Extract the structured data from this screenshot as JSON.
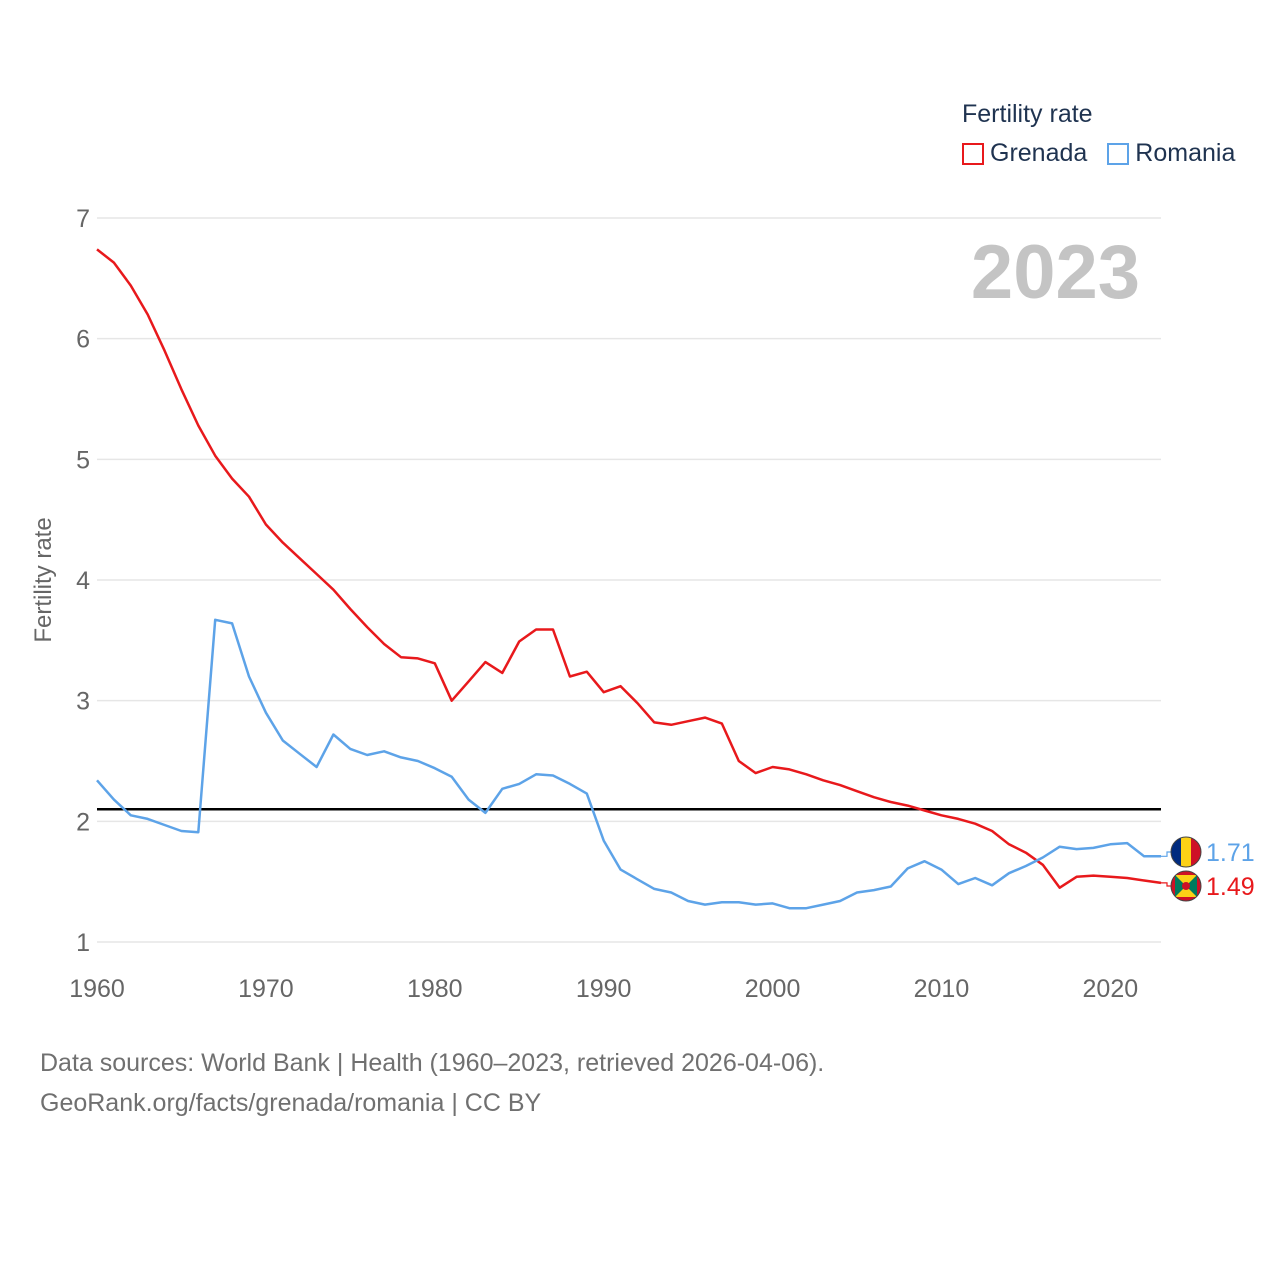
{
  "chart_data": {
    "type": "line",
    "title": "Fertility rate",
    "year_label": "2023",
    "ylabel": "Fertility rate",
    "xlabel": "",
    "xlim": [
      1960,
      2023
    ],
    "ylim": [
      1,
      7
    ],
    "x_ticks": [
      1960,
      1970,
      1980,
      1990,
      2000,
      2010,
      2020
    ],
    "y_ticks": [
      1,
      2,
      3,
      4,
      5,
      6,
      7
    ],
    "reference_line": 2.1,
    "grid": true,
    "x": [
      1960,
      1961,
      1962,
      1963,
      1964,
      1965,
      1966,
      1967,
      1968,
      1969,
      1970,
      1971,
      1972,
      1973,
      1974,
      1975,
      1976,
      1977,
      1978,
      1979,
      1980,
      1981,
      1982,
      1983,
      1984,
      1985,
      1986,
      1987,
      1988,
      1989,
      1990,
      1991,
      1992,
      1993,
      1994,
      1995,
      1996,
      1997,
      1998,
      1999,
      2000,
      2001,
      2002,
      2003,
      2004,
      2005,
      2006,
      2007,
      2008,
      2009,
      2010,
      2011,
      2012,
      2013,
      2014,
      2015,
      2016,
      2017,
      2018,
      2019,
      2020,
      2021,
      2022,
      2023
    ],
    "series": [
      {
        "name": "Grenada",
        "color": "#e8191c",
        "end_label": "1.49",
        "values": [
          6.74,
          6.63,
          6.44,
          6.2,
          5.9,
          5.58,
          5.28,
          5.03,
          4.84,
          4.69,
          4.46,
          4.31,
          4.18,
          4.05,
          3.92,
          3.76,
          3.61,
          3.47,
          3.36,
          3.35,
          3.31,
          3.0,
          3.16,
          3.32,
          3.23,
          3.49,
          3.59,
          3.59,
          3.2,
          3.24,
          3.07,
          3.12,
          2.98,
          2.82,
          2.8,
          2.83,
          2.86,
          2.81,
          2.5,
          2.4,
          2.45,
          2.43,
          2.39,
          2.34,
          2.3,
          2.25,
          2.2,
          2.16,
          2.13,
          2.09,
          2.05,
          2.02,
          1.98,
          1.92,
          1.81,
          1.74,
          1.64,
          1.45,
          1.54,
          1.55,
          1.54,
          1.53,
          1.51,
          1.49
        ]
      },
      {
        "name": "Romania",
        "color": "#5da3e8",
        "end_label": "1.71",
        "values": [
          2.34,
          2.18,
          2.05,
          2.02,
          1.97,
          1.92,
          1.91,
          3.67,
          3.64,
          3.2,
          2.9,
          2.67,
          2.56,
          2.45,
          2.72,
          2.6,
          2.55,
          2.58,
          2.53,
          2.5,
          2.44,
          2.37,
          2.18,
          2.07,
          2.27,
          2.31,
          2.39,
          2.38,
          2.31,
          2.23,
          1.84,
          1.6,
          1.52,
          1.44,
          1.41,
          1.34,
          1.31,
          1.33,
          1.33,
          1.31,
          1.32,
          1.28,
          1.28,
          1.31,
          1.34,
          1.41,
          1.43,
          1.46,
          1.61,
          1.67,
          1.6,
          1.48,
          1.53,
          1.47,
          1.57,
          1.63,
          1.7,
          1.79,
          1.77,
          1.78,
          1.81,
          1.82,
          1.71,
          1.71
        ]
      }
    ]
  },
  "legend": {
    "title": "Fertility rate",
    "items": [
      {
        "label": "Grenada",
        "color": "#e8191c"
      },
      {
        "label": "Romania",
        "color": "#5da3e8"
      }
    ]
  },
  "footer": {
    "line1": "Data sources: World Bank | Health (1960–2023, retrieved 2026-04-06).",
    "line2": "GeoRank.org/facts/grenada/romania | CC BY"
  }
}
